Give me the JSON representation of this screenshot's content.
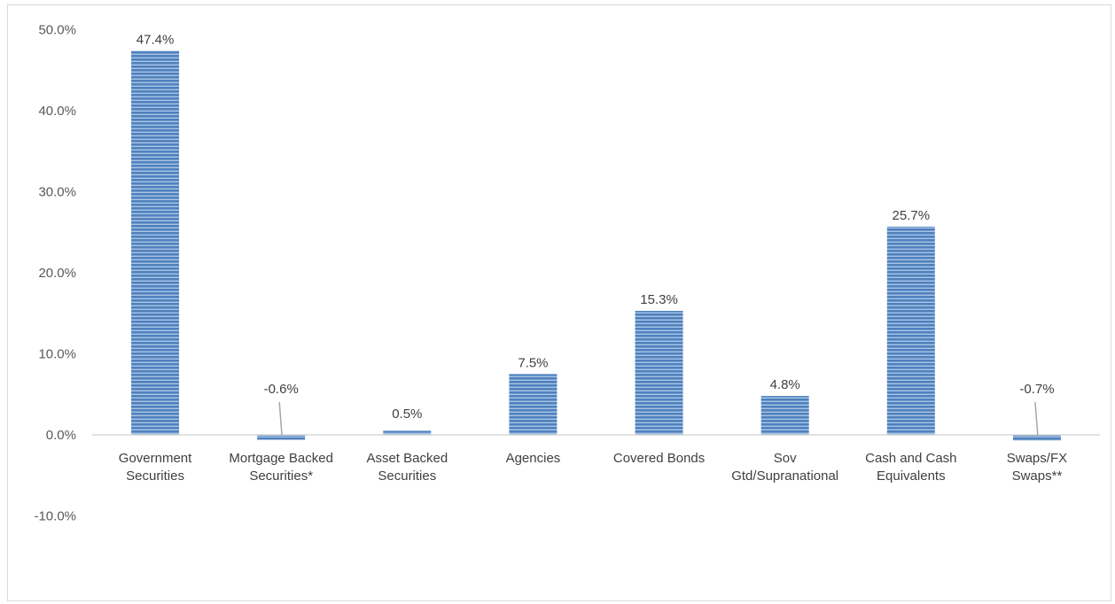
{
  "chart_data": {
    "type": "bar",
    "categories": [
      [
        "Government",
        "Securities"
      ],
      [
        "Mortgage Backed",
        "Securities*"
      ],
      [
        "Asset Backed",
        "Securities"
      ],
      [
        "Agencies"
      ],
      [
        "Covered Bonds"
      ],
      [
        "Sov",
        "Gtd/Supranational"
      ],
      [
        "Cash and Cash",
        "Equivalents"
      ],
      [
        "Swaps/FX",
        "Swaps**"
      ]
    ],
    "values": [
      47.4,
      -0.6,
      0.5,
      7.5,
      15.3,
      4.8,
      25.7,
      -0.7
    ],
    "data_labels": [
      "47.4%",
      "-0.6%",
      "0.5%",
      "7.5%",
      "15.3%",
      "4.8%",
      "25.7%",
      "-0.7%"
    ],
    "y_ticks": [
      50,
      40,
      30,
      20,
      10,
      0,
      -10
    ],
    "y_tick_labels": [
      "50.0%",
      "40.0%",
      "30.0%",
      "20.0%",
      "10.0%",
      "0.0%",
      "-10.0%"
    ],
    "ylim": [
      -20,
      50
    ],
    "grid": false,
    "legend": "none",
    "bar_color": "#4f81bd",
    "bar_stripe_color": "#a9c4e6",
    "leader_line_color": "#a6a6a6"
  }
}
